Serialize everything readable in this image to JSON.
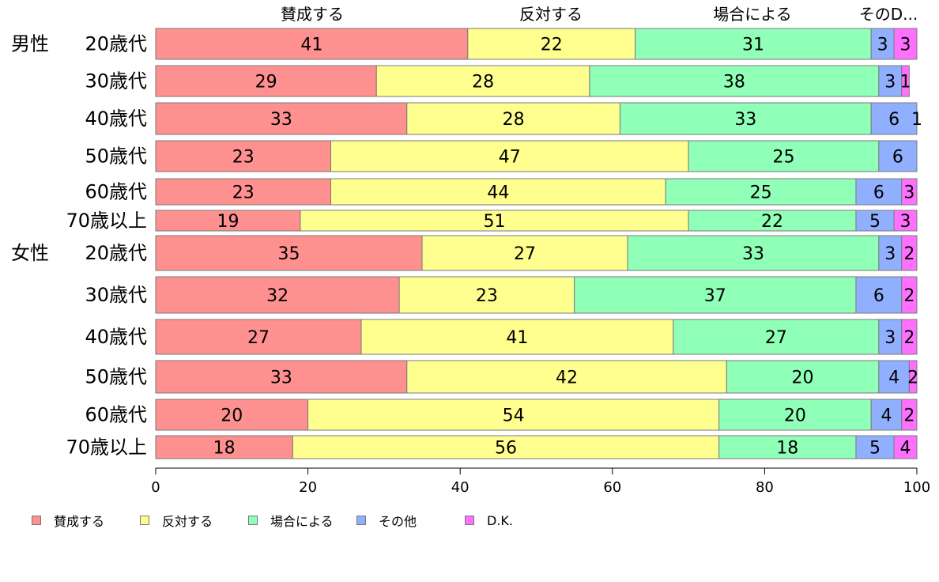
{
  "chart_data": {
    "type": "bar",
    "orientation": "horizontal",
    "stacked": true,
    "header_labels": [
      "賛成する",
      "反対する",
      "場合による",
      "そのD..."
    ],
    "group_labels": [
      "男性",
      "女性"
    ],
    "categories": [
      "20歳代",
      "30歳代",
      "40歳代",
      "50歳代",
      "60歳代",
      "70歳以上",
      "20歳代",
      "30歳代",
      "40歳代",
      "50歳代",
      "60歳代",
      "70歳以上"
    ],
    "series": [
      {
        "name": "賛成する",
        "color": "#ff9090",
        "values": [
          41,
          29,
          33,
          23,
          23,
          19,
          35,
          32,
          27,
          33,
          20,
          18
        ]
      },
      {
        "name": "反対する",
        "color": "#ffff90",
        "values": [
          22,
          28,
          28,
          47,
          44,
          51,
          27,
          23,
          41,
          42,
          54,
          56
        ]
      },
      {
        "name": "場合による",
        "color": "#90ffb8",
        "values": [
          31,
          38,
          33,
          25,
          25,
          22,
          33,
          37,
          27,
          20,
          20,
          18
        ]
      },
      {
        "name": "その他",
        "color": "#90b0ff",
        "values": [
          3,
          3,
          6,
          6,
          6,
          5,
          3,
          6,
          3,
          4,
          4,
          5
        ]
      },
      {
        "name": "D.K.",
        "color": "#ff70ff",
        "values": [
          3,
          1,
          1,
          0,
          3,
          3,
          2,
          2,
          2,
          2,
          2,
          4
        ]
      }
    ],
    "xlim": [
      0,
      100
    ],
    "xticks": [
      0,
      20,
      40,
      60,
      80,
      100
    ],
    "legend_position": "bottom-left",
    "grid": false
  }
}
